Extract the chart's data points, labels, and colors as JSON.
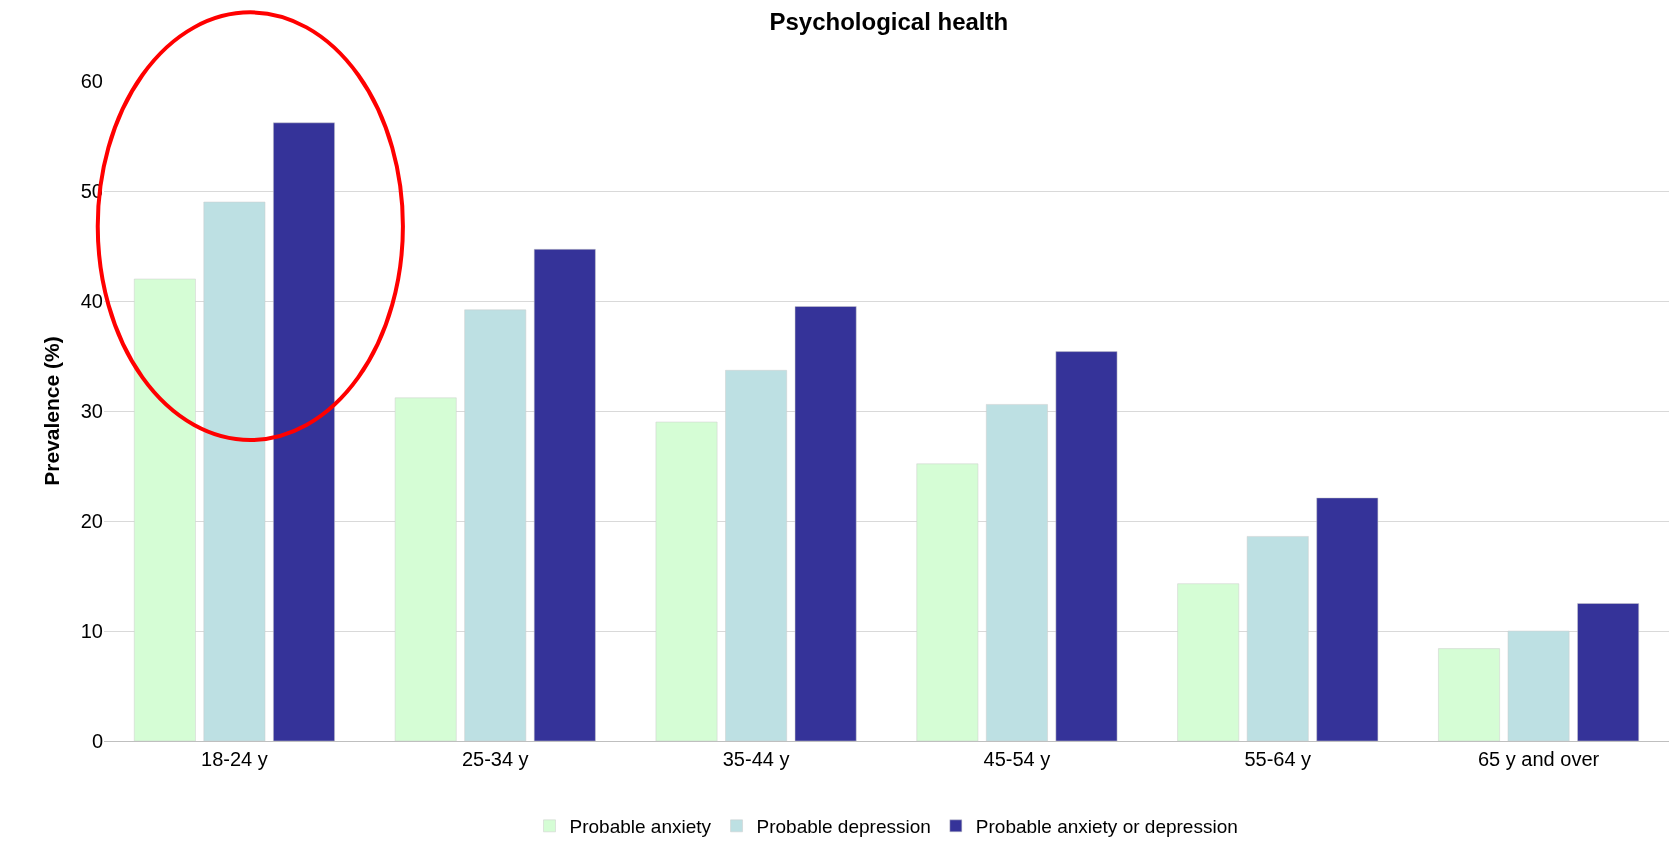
{
  "chart_data": {
    "type": "bar",
    "title": "Psychological health",
    "ylabel": "Prevalence (%)",
    "categories": [
      "18-24 y",
      "25-34 y",
      "35-44 y",
      "45-54 y",
      "55-64 y",
      "65 y and over"
    ],
    "series": [
      {
        "name": "Probable anxiety",
        "color": "#d5fdd5",
        "values": [
          42,
          31.2,
          29,
          25.2,
          14.3,
          8.4
        ]
      },
      {
        "name": "Probable depression",
        "color": "#bde0e3",
        "values": [
          49,
          39.2,
          33.7,
          30.6,
          18.6,
          10
        ]
      },
      {
        "name": "Probable anxiety or depression",
        "color": "#353399",
        "values": [
          56.2,
          44.7,
          39.5,
          35.4,
          22.1,
          12.5
        ]
      }
    ],
    "ylim": [
      0,
      60
    ],
    "yticks": [
      0,
      10,
      20,
      30,
      40,
      50,
      60
    ],
    "grid": "y",
    "legend": "bottom"
  }
}
